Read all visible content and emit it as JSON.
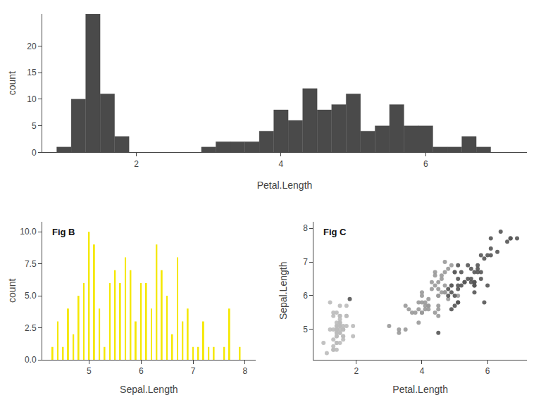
{
  "chart_data": [
    {
      "type": "histogram",
      "xlabel": "Petal.Length",
      "ylabel": "count",
      "bins": [
        0.9,
        1.1,
        1.3,
        1.5,
        1.7,
        1.9,
        2.1,
        2.3,
        2.5,
        2.7,
        2.9,
        3.1,
        3.3,
        3.5,
        3.7,
        3.9,
        4.1,
        4.3,
        4.5,
        4.7,
        4.9,
        5.1,
        5.3,
        5.5,
        5.7,
        5.9,
        6.1,
        6.3,
        6.5,
        6.7,
        6.9,
        7.1
      ],
      "values": [
        1,
        10,
        26,
        11,
        3,
        0,
        0,
        0,
        0,
        0,
        1,
        2,
        2,
        2,
        4,
        8,
        6,
        12,
        8,
        9,
        11,
        4,
        5,
        9,
        5,
        5,
        1,
        1,
        3,
        1,
        0
      ],
      "color": "#4a4a4a",
      "xlim": [
        0.7,
        7.4
      ],
      "xticks": [
        2,
        4,
        6
      ],
      "ylim": [
        0,
        26
      ],
      "yticks": [
        0,
        5,
        10,
        15,
        20
      ],
      "grid": false
    },
    {
      "type": "bar",
      "xlabel": "Sepal.Length",
      "ylabel": "count",
      "annotations": [
        "Fig B"
      ],
      "x": [
        4.3,
        4.4,
        4.5,
        4.6,
        4.7,
        4.8,
        4.9,
        5.0,
        5.1,
        5.2,
        5.3,
        5.4,
        5.5,
        5.6,
        5.7,
        5.8,
        5.9,
        6.0,
        6.1,
        6.2,
        6.3,
        6.4,
        6.5,
        6.6,
        6.7,
        6.8,
        6.9,
        7.0,
        7.1,
        7.2,
        7.3,
        7.4,
        7.6,
        7.7,
        7.9
      ],
      "values": [
        1,
        3,
        1,
        4,
        2,
        5,
        6,
        10,
        9,
        4,
        1,
        6,
        7,
        6,
        8,
        7,
        3,
        6,
        6,
        4,
        9,
        7,
        5,
        2,
        8,
        3,
        4,
        1,
        1,
        3,
        1,
        1,
        1,
        4,
        1
      ],
      "color": "#f5e800",
      "xlim": [
        4.1,
        8.2
      ],
      "xticks": [
        5,
        6,
        7,
        8
      ],
      "ylim": [
        0,
        10.8
      ],
      "yticks": [
        {
          "value": 0,
          "label": "0.0"
        },
        2.5,
        {
          "value": 5,
          "label": "5.0"
        },
        7.5,
        {
          "value": 10,
          "label": "10.0"
        }
      ],
      "grid": false
    },
    {
      "type": "scatter",
      "xlabel": "Petal.Length",
      "ylabel": "Sepal.Length",
      "annotations": [
        "Fig C"
      ],
      "series": [
        {
          "color": "#bbbbbb",
          "x": [
            1.4,
            1.4,
            1.3,
            1.5,
            1.4,
            1.7,
            1.4,
            1.5,
            1.4,
            1.5,
            1.5,
            1.6,
            1.4,
            1.1,
            1.2,
            1.5,
            1.3,
            1.4,
            1.7,
            1.5,
            1.7,
            1.5,
            1.0,
            1.7,
            1.9,
            1.6,
            1.6,
            1.5,
            1.4,
            1.6,
            1.6,
            1.5,
            1.5,
            1.4,
            1.5,
            1.2,
            1.3,
            1.4,
            1.3,
            1.5,
            1.3,
            1.3,
            1.3,
            1.6,
            1.9,
            1.4,
            1.6,
            1.4,
            1.5,
            1.4
          ],
          "values": [
            5.1,
            4.9,
            4.7,
            4.6,
            5.0,
            5.4,
            4.6,
            5.0,
            4.4,
            4.9,
            5.4,
            4.8,
            4.8,
            4.3,
            5.8,
            5.7,
            5.4,
            5.1,
            5.7,
            5.1,
            5.4,
            5.1,
            4.6,
            5.1,
            4.8,
            5.0,
            5.0,
            5.2,
            5.2,
            4.7,
            4.8,
            5.4,
            5.2,
            5.5,
            4.9,
            5.0,
            5.5,
            4.9,
            4.4,
            5.1,
            5.0,
            4.5,
            4.4,
            5.0,
            5.1,
            4.8,
            5.1,
            4.6,
            5.3,
            5.0
          ]
        },
        {
          "color": "#999999",
          "x": [
            4.7,
            4.5,
            4.9,
            4.0,
            4.6,
            4.5,
            4.7,
            3.3,
            4.6,
            3.9,
            3.5,
            4.2,
            4.0,
            4.7,
            3.6,
            4.4,
            4.5,
            4.1,
            4.5,
            3.9,
            4.8,
            4.0,
            4.9,
            4.7,
            4.3,
            4.4,
            4.8,
            5.0,
            4.5,
            3.5,
            3.8,
            3.7,
            3.9,
            5.1,
            4.5,
            4.5,
            4.7,
            4.4,
            4.1,
            4.0,
            4.4,
            4.6,
            4.0,
            3.3,
            4.2,
            4.2,
            4.2,
            4.3,
            3.0,
            4.1
          ],
          "values": [
            7.0,
            6.4,
            6.9,
            5.5,
            6.5,
            5.7,
            6.3,
            4.9,
            6.6,
            5.2,
            5.0,
            5.9,
            6.0,
            6.1,
            5.6,
            6.7,
            5.6,
            5.8,
            6.2,
            5.6,
            5.9,
            6.1,
            6.3,
            6.1,
            6.4,
            6.6,
            6.8,
            6.7,
            6.0,
            5.7,
            5.5,
            5.5,
            5.8,
            6.0,
            5.4,
            6.0,
            6.7,
            6.3,
            5.6,
            5.5,
            5.5,
            6.1,
            5.8,
            5.0,
            5.6,
            5.7,
            5.7,
            6.2,
            5.1,
            5.7
          ]
        },
        {
          "color": "#555555",
          "x": [
            6.0,
            5.1,
            5.9,
            5.6,
            5.8,
            6.6,
            4.5,
            6.3,
            5.8,
            6.1,
            5.1,
            5.3,
            5.5,
            5.0,
            5.1,
            5.3,
            5.5,
            6.7,
            6.9,
            5.0,
            5.7,
            4.9,
            6.7,
            4.9,
            5.7,
            6.0,
            4.8,
            4.9,
            5.6,
            5.8,
            6.1,
            6.4,
            5.6,
            5.1,
            5.6,
            6.1,
            5.6,
            5.5,
            4.8,
            5.4,
            5.6,
            5.1,
            5.9,
            5.7,
            5.2,
            5.0,
            5.2,
            5.4,
            5.1,
            1.8
          ],
          "values": [
            6.3,
            5.8,
            7.1,
            6.3,
            6.5,
            7.6,
            4.9,
            7.3,
            6.7,
            7.2,
            6.5,
            6.4,
            6.8,
            5.7,
            5.8,
            6.4,
            6.5,
            7.7,
            7.7,
            6.0,
            6.9,
            5.6,
            7.7,
            6.3,
            6.7,
            7.2,
            6.2,
            6.1,
            6.4,
            7.2,
            7.4,
            7.9,
            6.4,
            6.3,
            6.1,
            7.7,
            6.3,
            6.4,
            6.0,
            6.9,
            6.7,
            6.9,
            5.8,
            6.8,
            6.7,
            6.7,
            6.3,
            6.5,
            6.2,
            5.9
          ]
        }
      ],
      "xlim": [
        0.7,
        7.2
      ],
      "xticks": [
        2,
        4,
        6
      ],
      "ylim": [
        4.1,
        8.2
      ],
      "yticks": [
        5,
        6,
        7,
        8
      ],
      "grid": false
    }
  ]
}
